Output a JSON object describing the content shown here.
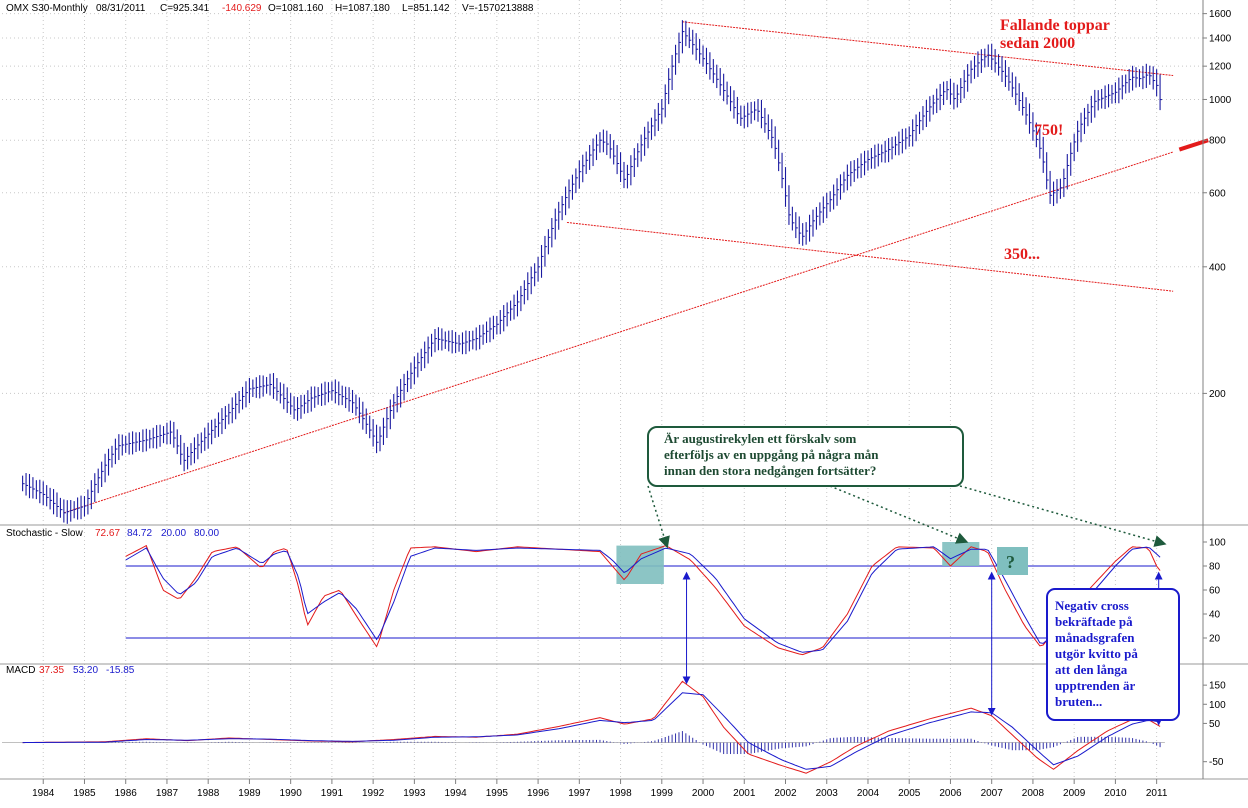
{
  "header": {
    "symbol": "OMX S30-Monthly",
    "date": "08/31/2011",
    "close": "C=925.341",
    "change": "-140.629",
    "open": "O=1081.160",
    "high": "H=1087.180",
    "low": "L=851.142",
    "volume": "V=-1570213888"
  },
  "annotations": {
    "falling_tops_line1": "Fallande toppar",
    "falling_tops_line2": "sedan 2000",
    "level_750": "750!",
    "level_350": "350...",
    "question_box": [
      "Är augustirekylen ett förskalv som",
      "efterföljs av en uppgång på några mån",
      "innan den stora nedgången fortsätter?"
    ],
    "question_mark": "?",
    "blue_box": [
      "Negativ cross",
      "bekräftade på",
      "månadsgrafen",
      "utgör kvitto på",
      "att den långa",
      "upptrenden är",
      "bruten..."
    ]
  },
  "stochastic_header": {
    "label": "Stochastic - Slow",
    "v1": "72.67",
    "v2": "84.72",
    "v3": "20.00",
    "v4": "80.00"
  },
  "macd_header": {
    "label": "MACD",
    "v1": "37.35",
    "v2": "53.20",
    "v3": "-15.85"
  },
  "colors": {
    "price_bars": "#1a1aa0",
    "trendline": "#e31b1b",
    "stoch_k": "#e31b1b",
    "stoch_d": "#1a1acc",
    "highlight": "#7fbfbf",
    "question_border": "#1e5a3c",
    "blue_box_border": "#1a1acc",
    "grid": "#c8c8c8"
  },
  "chart_data": [
    {
      "type": "ohlc",
      "panel": "price",
      "scale": "log",
      "ylim": [
        100,
        1650
      ],
      "yticks": [
        200,
        400,
        600,
        800,
        1000,
        1200,
        1400,
        1600
      ],
      "x": [
        1984,
        1985,
        1986,
        1987,
        1988,
        1989,
        1990,
        1991,
        1992,
        1993,
        1994,
        1995,
        1996,
        1997,
        1998,
        1999,
        2000,
        2001,
        2002,
        2003,
        2004,
        2005,
        2006,
        2007,
        2008,
        2009,
        2010,
        2011
      ],
      "xlabels": [
        "1984",
        "1985",
        "1986",
        "1987",
        "1988",
        "1989",
        "1990",
        "1991",
        "1992",
        "1993",
        "1994",
        "1995",
        "1996",
        "1997",
        "1998",
        "1999",
        "2000",
        "2001",
        "2002",
        "2003",
        "2004",
        "2005",
        "2006",
        "2007",
        "2008",
        "2009",
        "2010",
        "2011"
      ],
      "anchors": [
        [
          1984.0,
          122
        ],
        [
          1984.5,
          115
        ],
        [
          1985.0,
          104
        ],
        [
          1985.5,
          108
        ],
        [
          1986.0,
          135
        ],
        [
          1986.3,
          150
        ],
        [
          1987.0,
          155
        ],
        [
          1987.6,
          162
        ],
        [
          1987.9,
          138
        ],
        [
          1988.5,
          160
        ],
        [
          1989.0,
          180
        ],
        [
          1989.5,
          205
        ],
        [
          1990.0,
          210
        ],
        [
          1990.6,
          182
        ],
        [
          1991.0,
          195
        ],
        [
          1991.5,
          203
        ],
        [
          1992.0,
          190
        ],
        [
          1992.6,
          152
        ],
        [
          1993.0,
          190
        ],
        [
          1993.5,
          230
        ],
        [
          1994.0,
          270
        ],
        [
          1994.6,
          262
        ],
        [
          1995.0,
          270
        ],
        [
          1995.5,
          292
        ],
        [
          1996.0,
          330
        ],
        [
          1996.5,
          400
        ],
        [
          1997.0,
          540
        ],
        [
          1997.6,
          700
        ],
        [
          1998.0,
          800
        ],
        [
          1998.2,
          780
        ],
        [
          1998.6,
          640
        ],
        [
          1999.0,
          780
        ],
        [
          1999.5,
          950
        ],
        [
          2000.0,
          1450
        ],
        [
          2000.5,
          1250
        ],
        [
          2001.0,
          1050
        ],
        [
          2001.4,
          900
        ],
        [
          2001.8,
          950
        ],
        [
          2002.2,
          800
        ],
        [
          2002.6,
          520
        ],
        [
          2002.9,
          470
        ],
        [
          2003.2,
          520
        ],
        [
          2003.6,
          580
        ],
        [
          2004.0,
          660
        ],
        [
          2004.5,
          720
        ],
        [
          2005.0,
          760
        ],
        [
          2005.5,
          820
        ],
        [
          2006.0,
          960
        ],
        [
          2006.4,
          1060
        ],
        [
          2006.6,
          1000
        ],
        [
          2007.0,
          1180
        ],
        [
          2007.4,
          1280
        ],
        [
          2007.8,
          1150
        ],
        [
          2008.2,
          980
        ],
        [
          2008.7,
          750
        ],
        [
          2008.9,
          590
        ],
        [
          2009.2,
          620
        ],
        [
          2009.6,
          850
        ],
        [
          2010.0,
          990
        ],
        [
          2010.5,
          1040
        ],
        [
          2010.9,
          1130
        ],
        [
          2011.1,
          1120
        ],
        [
          2011.3,
          1150
        ],
        [
          2011.5,
          1080
        ],
        [
          2011.66,
          925
        ]
      ],
      "trendlines": [
        {
          "name": "falling-tops",
          "from": [
            2000.0,
            1530
          ],
          "to": [
            2011.9,
            1140
          ]
        },
        {
          "name": "support-750",
          "from": [
            1985.0,
            104
          ],
          "to": [
            2011.9,
            750
          ]
        },
        {
          "name": "channel-350",
          "from": [
            1997.2,
            510
          ],
          "to": [
            2011.9,
            350
          ]
        }
      ]
    },
    {
      "type": "line",
      "panel": "stochastic",
      "ylim": [
        0,
        110
      ],
      "yticks": [
        20,
        40,
        60,
        80,
        100
      ],
      "hlines": [
        80,
        20
      ],
      "series": [
        {
          "color": "red",
          "anchors": [
            [
              1986.5,
              88
            ],
            [
              1987.0,
              97
            ],
            [
              1987.4,
              60
            ],
            [
              1987.8,
              52
            ],
            [
              1988.2,
              70
            ],
            [
              1988.6,
              92
            ],
            [
              1989.2,
              96
            ],
            [
              1989.8,
              78
            ],
            [
              1990.1,
              92
            ],
            [
              1990.4,
              95
            ],
            [
              1990.7,
              62
            ],
            [
              1990.9,
              30
            ],
            [
              1991.3,
              55
            ],
            [
              1991.7,
              60
            ],
            [
              1992.1,
              38
            ],
            [
              1992.6,
              12
            ],
            [
              1993.0,
              60
            ],
            [
              1993.4,
              95
            ],
            [
              1994.0,
              96
            ],
            [
              1995.0,
              92
            ],
            [
              1996.0,
              96
            ],
            [
              1997.0,
              94
            ],
            [
              1998.0,
              92
            ],
            [
              1998.3,
              80
            ],
            [
              1998.6,
              68
            ],
            [
              1999.0,
              90
            ],
            [
              1999.6,
              97
            ],
            [
              2000.2,
              85
            ],
            [
              2000.8,
              62
            ],
            [
              2001.5,
              30
            ],
            [
              2002.3,
              12
            ],
            [
              2002.9,
              6
            ],
            [
              2003.4,
              12
            ],
            [
              2004.0,
              40
            ],
            [
              2004.6,
              80
            ],
            [
              2005.2,
              96
            ],
            [
              2006.1,
              95
            ],
            [
              2006.5,
              80
            ],
            [
              2007.0,
              96
            ],
            [
              2007.4,
              92
            ],
            [
              2007.8,
              62
            ],
            [
              2008.3,
              30
            ],
            [
              2008.7,
              12
            ],
            [
              2009.3,
              38
            ],
            [
              2009.9,
              62
            ],
            [
              2010.5,
              84
            ],
            [
              2010.9,
              96
            ],
            [
              2011.3,
              95
            ],
            [
              2011.5,
              80
            ],
            [
              2011.66,
              72.67
            ]
          ]
        },
        {
          "color": "blue",
          "anchors": [
            [
              1986.5,
              85
            ],
            [
              1987.0,
              95
            ],
            [
              1987.4,
              70
            ],
            [
              1987.8,
              56
            ],
            [
              1988.2,
              66
            ],
            [
              1988.6,
              88
            ],
            [
              1989.2,
              95
            ],
            [
              1989.8,
              82
            ],
            [
              1990.1,
              90
            ],
            [
              1990.4,
              93
            ],
            [
              1990.7,
              70
            ],
            [
              1990.9,
              40
            ],
            [
              1991.3,
              50
            ],
            [
              1991.7,
              58
            ],
            [
              1992.1,
              44
            ],
            [
              1992.6,
              18
            ],
            [
              1993.0,
              50
            ],
            [
              1993.4,
              88
            ],
            [
              1994.0,
              95
            ],
            [
              1995.0,
              93
            ],
            [
              1996.0,
              95
            ],
            [
              1997.0,
              94
            ],
            [
              1998.0,
              93
            ],
            [
              1998.3,
              85
            ],
            [
              1998.6,
              74
            ],
            [
              1999.0,
              86
            ],
            [
              1999.6,
              95
            ],
            [
              2000.2,
              90
            ],
            [
              2000.8,
              70
            ],
            [
              2001.5,
              36
            ],
            [
              2002.3,
              16
            ],
            [
              2002.9,
              8
            ],
            [
              2003.4,
              10
            ],
            [
              2004.0,
              34
            ],
            [
              2004.6,
              74
            ],
            [
              2005.2,
              94
            ],
            [
              2006.1,
              96
            ],
            [
              2006.5,
              86
            ],
            [
              2007.0,
              94
            ],
            [
              2007.4,
              94
            ],
            [
              2007.8,
              70
            ],
            [
              2008.3,
              38
            ],
            [
              2008.7,
              14
            ],
            [
              2009.3,
              32
            ],
            [
              2009.9,
              56
            ],
            [
              2010.5,
              80
            ],
            [
              2010.9,
              94
            ],
            [
              2011.3,
              96
            ],
            [
              2011.5,
              90
            ],
            [
              2011.66,
              84.72
            ]
          ]
        }
      ]
    },
    {
      "type": "line",
      "panel": "macd",
      "ylim": [
        -90,
        200
      ],
      "yticks": [
        -50,
        50,
        100,
        150
      ],
      "series": [
        {
          "color": "red",
          "anchors": [
            [
              1984.0,
              0
            ],
            [
              1986.0,
              2
            ],
            [
              1987.0,
              10
            ],
            [
              1988.0,
              5
            ],
            [
              1989.0,
              12
            ],
            [
              1990.0,
              8
            ],
            [
              1991.0,
              4
            ],
            [
              1992.0,
              2
            ],
            [
              1993.0,
              8
            ],
            [
              1994.0,
              16
            ],
            [
              1995.0,
              14
            ],
            [
              1996.0,
              22
            ],
            [
              1997.0,
              42
            ],
            [
              1998.0,
              65
            ],
            [
              1998.6,
              48
            ],
            [
              1999.3,
              62
            ],
            [
              2000.0,
              160
            ],
            [
              2000.5,
              120
            ],
            [
              2001.0,
              40
            ],
            [
              2001.6,
              -30
            ],
            [
              2002.4,
              -60
            ],
            [
              2003.0,
              -80
            ],
            [
              2003.6,
              -50
            ],
            [
              2004.2,
              -10
            ],
            [
              2005.0,
              30
            ],
            [
              2006.0,
              62
            ],
            [
              2007.0,
              90
            ],
            [
              2007.5,
              70
            ],
            [
              2008.0,
              20
            ],
            [
              2008.6,
              -40
            ],
            [
              2009.0,
              -70
            ],
            [
              2009.6,
              -20
            ],
            [
              2010.3,
              30
            ],
            [
              2010.9,
              60
            ],
            [
              2011.3,
              60
            ],
            [
              2011.66,
              37.35
            ]
          ]
        },
        {
          "color": "blue",
          "anchors": [
            [
              1984.0,
              0
            ],
            [
              1986.0,
              1
            ],
            [
              1987.0,
              8
            ],
            [
              1988.0,
              6
            ],
            [
              1989.0,
              10
            ],
            [
              1990.0,
              9
            ],
            [
              1991.0,
              5
            ],
            [
              1992.0,
              3
            ],
            [
              1993.0,
              6
            ],
            [
              1994.0,
              14
            ],
            [
              1995.0,
              15
            ],
            [
              1996.0,
              20
            ],
            [
              1997.0,
              36
            ],
            [
              1998.0,
              58
            ],
            [
              1998.6,
              52
            ],
            [
              1999.3,
              58
            ],
            [
              2000.0,
              130
            ],
            [
              2000.5,
              125
            ],
            [
              2001.0,
              70
            ],
            [
              2001.6,
              0
            ],
            [
              2002.4,
              -45
            ],
            [
              2003.0,
              -70
            ],
            [
              2003.6,
              -62
            ],
            [
              2004.2,
              -25
            ],
            [
              2005.0,
              18
            ],
            [
              2006.0,
              52
            ],
            [
              2007.0,
              80
            ],
            [
              2007.5,
              78
            ],
            [
              2008.0,
              40
            ],
            [
              2008.6,
              -20
            ],
            [
              2009.0,
              -58
            ],
            [
              2009.6,
              -35
            ],
            [
              2010.3,
              15
            ],
            [
              2010.9,
              48
            ],
            [
              2011.3,
              58
            ],
            [
              2011.66,
              53.2
            ]
          ]
        }
      ]
    }
  ]
}
